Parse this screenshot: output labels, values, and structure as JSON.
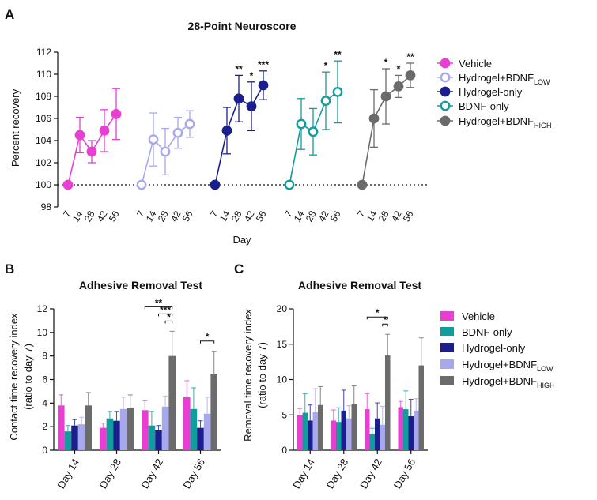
{
  "panels": {
    "A": "A",
    "B": "B",
    "C": "C"
  },
  "chart_data": [
    {
      "panel": "A",
      "type": "line",
      "title": "28-Point Neuroscore",
      "xlabel": "Day",
      "ylabel": "Percent recovery",
      "ylim": [
        98,
        112
      ],
      "yticks": [
        98,
        100,
        102,
        104,
        106,
        108,
        110,
        112
      ],
      "x": [
        "7",
        "14",
        "28",
        "42",
        "56"
      ],
      "reference_line": 100,
      "series": [
        {
          "name": "Vehicle",
          "base": "Vehicle",
          "sub": "",
          "color": "#e83fd2",
          "filled": true,
          "values": [
            100,
            104.5,
            103,
            104.9,
            106.4
          ],
          "errors": [
            0,
            1.6,
            1.0,
            1.9,
            2.3
          ],
          "sig": [
            "",
            "",
            "",
            "",
            ""
          ]
        },
        {
          "name": "Hydrogel+BDNF LOW",
          "base": "Hydrogel+BDNF",
          "sub": "LOW",
          "color": "#a8a8ec",
          "filled": false,
          "values": [
            100,
            104.1,
            103,
            104.7,
            105.5
          ],
          "errors": [
            0,
            2.4,
            2.1,
            1.4,
            1.2
          ],
          "sig": [
            "",
            "",
            "",
            "",
            ""
          ]
        },
        {
          "name": "Hydrogel-only",
          "base": "Hydrogel-only",
          "sub": "",
          "color": "#1a1f8c",
          "filled": true,
          "values": [
            100,
            104.9,
            107.8,
            107.1,
            109
          ],
          "errors": [
            0,
            2.1,
            2.1,
            2.2,
            1.3
          ],
          "sig": [
            "",
            "",
            "**",
            "*",
            "***"
          ]
        },
        {
          "name": "BDNF-only",
          "base": "BDNF-only",
          "sub": "",
          "color": "#139c9c",
          "filled": false,
          "values": [
            100,
            105.5,
            104.8,
            107.6,
            108.4
          ],
          "errors": [
            0,
            2.3,
            2.1,
            2.6,
            2.8
          ],
          "sig": [
            "",
            "",
            "",
            "*",
            "**"
          ]
        },
        {
          "name": "Hydrogel+BDNF HIGH",
          "base": "Hydrogel+BDNF",
          "sub": "HIGH",
          "color": "#6b6b6b",
          "filled": true,
          "values": [
            100,
            106,
            108,
            108.9,
            109.9
          ],
          "errors": [
            0,
            2.6,
            2.5,
            1.0,
            1.1
          ],
          "sig": [
            "",
            "",
            "*",
            "*",
            "**"
          ]
        }
      ]
    },
    {
      "panel": "B",
      "type": "bar",
      "title": "Adhesive Removal Test",
      "xlabel": "",
      "ylabel": "Contact time recovery index",
      "ylabel2": "(ratio to day 7)",
      "ylim": [
        0,
        12
      ],
      "yticks": [
        0,
        2,
        4,
        6,
        8,
        10,
        12
      ],
      "categories": [
        "Day 14",
        "Day 28",
        "Day 42",
        "Day 56"
      ],
      "series": [
        {
          "name": "Vehicle",
          "color": "#e83fd2",
          "values": [
            3.8,
            1.9,
            3.4,
            4.5
          ],
          "errors": [
            0.9,
            0.4,
            0.8,
            1.4
          ]
        },
        {
          "name": "BDNF-only",
          "color": "#139c9c",
          "values": [
            1.6,
            2.7,
            2.1,
            3.5
          ],
          "errors": [
            0.5,
            0.6,
            1.2,
            1.8
          ]
        },
        {
          "name": "Hydrogel-only",
          "color": "#1a1f8c",
          "values": [
            2.1,
            2.5,
            1.7,
            1.9
          ],
          "errors": [
            0.5,
            0.8,
            0.4,
            0.6
          ]
        },
        {
          "name": "Hydrogel+BDNF LOW",
          "color": "#a8a8ec",
          "values": [
            2.2,
            3.5,
            3.7,
            3.1
          ],
          "errors": [
            0.6,
            1.0,
            0.9,
            1.4
          ]
        },
        {
          "name": "Hydrogel+BDNF HIGH",
          "color": "#6b6b6b",
          "values": [
            3.8,
            3.6,
            8.0,
            6.5
          ],
          "errors": [
            1.1,
            1.1,
            2.1,
            1.9
          ]
        }
      ],
      "brackets": [
        {
          "cat": 2,
          "from": 0,
          "to": 4,
          "level": 3,
          "label": "**"
        },
        {
          "cat": 2,
          "from": 2,
          "to": 4,
          "level": 2,
          "label": "***"
        },
        {
          "cat": 2,
          "from": 3,
          "to": 4,
          "level": 1,
          "label": "*"
        },
        {
          "cat": 3,
          "from": 2,
          "to": 4,
          "level": 1,
          "label": "*"
        }
      ]
    },
    {
      "panel": "C",
      "type": "bar",
      "title": "Adhesive Removal Test",
      "xlabel": "",
      "ylabel": "Removal time recovery index",
      "ylabel2": "(ratio to day 7)",
      "ylim": [
        0,
        20
      ],
      "yticks": [
        0,
        5,
        10,
        15,
        20
      ],
      "categories": [
        "Day 14",
        "Day 28",
        "Day 42",
        "Day 56"
      ],
      "series": [
        {
          "name": "Vehicle",
          "color": "#e83fd2",
          "values": [
            5.0,
            4.2,
            5.8,
            6.1
          ],
          "errors": [
            0.9,
            1.5,
            2.2,
            0.8
          ]
        },
        {
          "name": "BDNF-only",
          "color": "#139c9c",
          "values": [
            5.3,
            4.0,
            2.3,
            5.8
          ],
          "errors": [
            2.7,
            2.0,
            0.8,
            2.6
          ]
        },
        {
          "name": "Hydrogel-only",
          "color": "#1a1f8c",
          "values": [
            4.2,
            5.6,
            4.5,
            4.8
          ],
          "errors": [
            2.2,
            2.9,
            2.2,
            2.4
          ]
        },
        {
          "name": "Hydrogel+BDNF LOW",
          "color": "#a8a8ec",
          "values": [
            5.4,
            4.5,
            3.6,
            5.6
          ],
          "errors": [
            3.3,
            1.8,
            2.6,
            1.7
          ]
        },
        {
          "name": "Hydrogel+BDNF HIGH",
          "color": "#6b6b6b",
          "values": [
            6.4,
            6.5,
            13.4,
            12.0
          ],
          "errors": [
            2.6,
            2.6,
            3.0,
            3.9
          ]
        }
      ],
      "brackets": [
        {
          "cat": 2,
          "from": 0,
          "to": 4,
          "level": 2,
          "label": "*"
        },
        {
          "cat": 2,
          "from": 3,
          "to": 4,
          "level": 1,
          "label": "*"
        }
      ]
    }
  ],
  "bar_legend": [
    {
      "base": "Vehicle",
      "sub": "",
      "color": "#e83fd2"
    },
    {
      "base": "BDNF-only",
      "sub": "",
      "color": "#139c9c"
    },
    {
      "base": "Hydrogel-only",
      "sub": "",
      "color": "#1a1f8c"
    },
    {
      "base": "Hydrogel+BDNF",
      "sub": "LOW",
      "color": "#a8a8ec"
    },
    {
      "base": "Hydrogel+BDNF",
      "sub": "HIGH",
      "color": "#6b6b6b"
    }
  ]
}
